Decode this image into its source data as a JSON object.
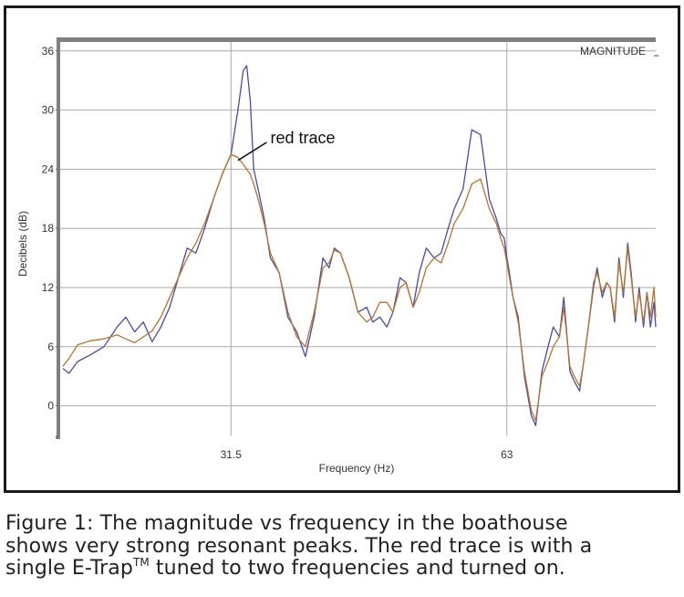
{
  "chart_data": {
    "type": "line",
    "panel_label": "MAGNITUDE",
    "xlabel": "Frequency (Hz)",
    "ylabel": "Decibels (dB)",
    "x_ticks": [
      {
        "value": 31.5,
        "label": "31.5"
      },
      {
        "value": 63,
        "label": "63"
      }
    ],
    "y_ticks": [
      {
        "value": 36,
        "label": "36"
      },
      {
        "value": 30,
        "label": "30"
      },
      {
        "value": 24,
        "label": "24"
      },
      {
        "value": 18,
        "label": "18"
      },
      {
        "value": 12,
        "label": "12"
      },
      {
        "value": 6,
        "label": "6"
      },
      {
        "value": 0,
        "label": "0"
      }
    ],
    "xlim": [
      12,
      80
    ],
    "ylim": [
      -3,
      37
    ],
    "grid": true,
    "annotations": [
      {
        "text": "red trace",
        "x": 38.5,
        "y": 27.2,
        "arrow_to": [
          32.3,
          24.9
        ]
      }
    ],
    "series": [
      {
        "color": "#4a4aa8",
        "x": [
          12.3,
          13.0,
          14.0,
          15.5,
          17.0,
          18.5,
          19.5,
          20.5,
          21.5,
          22.5,
          23.5,
          24.5,
          25.5,
          26.5,
          27.5,
          28.5,
          29.5,
          30.5,
          31.5,
          32.3,
          32.9,
          33.3,
          33.7,
          34.1,
          34.6,
          35.3,
          36.0,
          37.0,
          38.0,
          39.0,
          40.0,
          41.0,
          42.0,
          42.7,
          43.3,
          44.0,
          45.0,
          46.0,
          47.0,
          47.7,
          48.5,
          49.3,
          50.0,
          50.8,
          51.5,
          52.3,
          53.0,
          53.8,
          54.7,
          55.5,
          56.3,
          57.0,
          58.0,
          59.0,
          60.0,
          61.0,
          61.8,
          62.3,
          62.7,
          63.0,
          63.3,
          63.7,
          64.3,
          65.0,
          65.8,
          66.3,
          67.0,
          67.7,
          68.3,
          69.0,
          69.5,
          70.2,
          70.7,
          71.3,
          71.7,
          72.3,
          72.9,
          73.3,
          73.9,
          74.4,
          74.8,
          75.3,
          75.8,
          76.3,
          76.8,
          77.2,
          77.7,
          78.1,
          78.6,
          79.0,
          79.4,
          79.8,
          80.0
        ],
        "y": [
          3.8,
          3.3,
          4.5,
          5.2,
          6.0,
          8.0,
          9.0,
          7.5,
          8.5,
          6.5,
          8.0,
          10.0,
          13.0,
          16.0,
          15.5,
          18.0,
          21.0,
          23.5,
          25.5,
          30.0,
          34.0,
          34.5,
          31.0,
          24.0,
          22.0,
          19.0,
          15.0,
          13.5,
          9.0,
          7.5,
          5.0,
          9.0,
          15.0,
          14.0,
          16.0,
          15.5,
          13.0,
          9.5,
          10.0,
          8.5,
          9.0,
          8.0,
          9.5,
          13.0,
          12.5,
          10.0,
          13.5,
          16.0,
          15.0,
          15.5,
          18.0,
          20.0,
          22.0,
          28.0,
          27.5,
          21.0,
          19.0,
          17.5,
          17.0,
          15.0,
          13.5,
          11.0,
          9.0,
          3.0,
          -1.0,
          -2.0,
          3.5,
          6.0,
          8.0,
          7.0,
          11.0,
          3.5,
          2.5,
          1.5,
          4.0,
          8.0,
          12.0,
          14.0,
          11.0,
          12.5,
          12.0,
          8.5,
          15.0,
          11.0,
          16.5,
          13.5,
          8.5,
          12.0,
          8.0,
          11.5,
          8.0,
          10.5,
          8.0
        ]
      },
      {
        "color": "#b8742a",
        "x": [
          12.3,
          13.0,
          14.0,
          15.5,
          17.0,
          18.5,
          19.5,
          20.5,
          21.5,
          22.5,
          23.5,
          24.5,
          25.5,
          26.5,
          27.5,
          28.5,
          29.5,
          30.5,
          31.5,
          32.3,
          32.9,
          33.3,
          33.7,
          34.1,
          34.6,
          35.3,
          36.0,
          37.0,
          38.0,
          39.0,
          40.0,
          41.0,
          42.0,
          42.7,
          43.3,
          44.0,
          45.0,
          46.0,
          47.0,
          47.7,
          48.5,
          49.3,
          50.0,
          50.8,
          51.5,
          52.3,
          53.0,
          53.8,
          54.7,
          55.5,
          56.3,
          57.0,
          58.0,
          59.0,
          60.0,
          61.0,
          61.8,
          62.3,
          62.7,
          63.0,
          63.3,
          63.7,
          64.3,
          65.0,
          65.8,
          66.3,
          67.0,
          67.7,
          68.3,
          69.0,
          69.5,
          70.2,
          70.7,
          71.3,
          71.7,
          72.3,
          72.9,
          73.3,
          73.9,
          74.4,
          74.8,
          75.3,
          75.8,
          76.3,
          76.8,
          77.2,
          77.7,
          78.1,
          78.6,
          79.0,
          79.4,
          79.8,
          80.0
        ],
        "y": [
          4.0,
          4.8,
          6.2,
          6.6,
          6.8,
          7.2,
          6.8,
          6.4,
          7.0,
          7.6,
          9.0,
          11.0,
          13.0,
          15.0,
          16.5,
          18.5,
          21.0,
          23.5,
          25.5,
          25.2,
          24.5,
          24.0,
          23.5,
          22.5,
          21.0,
          18.5,
          15.5,
          13.5,
          9.5,
          7.0,
          6.0,
          9.5,
          14.0,
          14.5,
          15.8,
          15.5,
          13.0,
          9.5,
          8.5,
          9.0,
          10.5,
          10.5,
          9.5,
          12.0,
          12.5,
          10.0,
          11.5,
          14.0,
          15.0,
          14.5,
          16.5,
          18.5,
          20.0,
          22.5,
          23.0,
          20.0,
          18.5,
          17.0,
          16.0,
          14.5,
          13.0,
          11.0,
          8.5,
          3.5,
          -0.5,
          -1.5,
          3.0,
          4.5,
          6.0,
          7.0,
          10.0,
          4.0,
          3.0,
          2.0,
          4.0,
          8.0,
          12.5,
          13.5,
          11.5,
          12.5,
          12.0,
          9.0,
          14.5,
          11.5,
          16.0,
          13.0,
          9.0,
          11.5,
          8.5,
          11.5,
          9.0,
          12.0,
          9.0
        ]
      }
    ]
  },
  "caption": {
    "line1": "Figure 1: The magnitude vs frequency in the boathouse",
    "line2": "shows very strong resonant peaks. The red trace is with a",
    "line3_pre": "single E-Trap",
    "line3_sup": "TM",
    "line3_post": " tuned to two frequencies and turned on."
  }
}
